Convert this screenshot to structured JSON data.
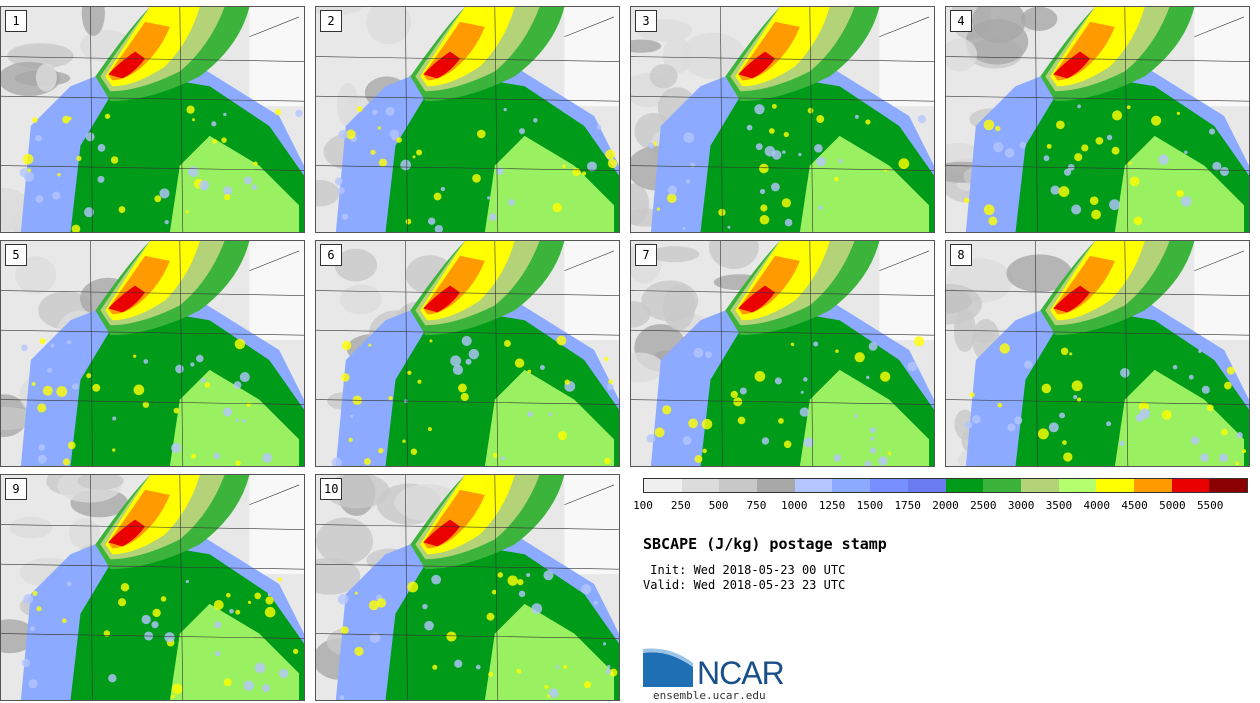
{
  "panels": [
    {
      "label": "1"
    },
    {
      "label": "2"
    },
    {
      "label": "3"
    },
    {
      "label": "4"
    },
    {
      "label": "5"
    },
    {
      "label": "6"
    },
    {
      "label": "7"
    },
    {
      "label": "8"
    },
    {
      "label": "9"
    },
    {
      "label": "10"
    }
  ],
  "colorbar": {
    "colors": [
      "#f0f0f0",
      "#dcdcdc",
      "#c8c8c8",
      "#a8a8a8",
      "#b4c6ff",
      "#8caaff",
      "#7890ff",
      "#6a7cf0",
      "#009b19",
      "#3cb43c",
      "#b4d278",
      "#b4ff6e",
      "#ffff00",
      "#ff9b00",
      "#eb0000",
      "#8b0000"
    ],
    "ticks": [
      "100",
      "250",
      "500",
      "750",
      "1000",
      "1250",
      "1500",
      "1750",
      "2000",
      "2500",
      "3000",
      "3500",
      "4000",
      "4500",
      "5000",
      "5500"
    ]
  },
  "title": "SBCAPE (J/kg) postage stamp",
  "init": " Init: Wed 2018-05-23 00 UTC",
  "valid": "Valid: Wed 2018-05-23 23 UTC",
  "logo": {
    "text": "NCAR",
    "site": "ensemble.ucar.edu",
    "color": "#1a4f8a"
  }
}
